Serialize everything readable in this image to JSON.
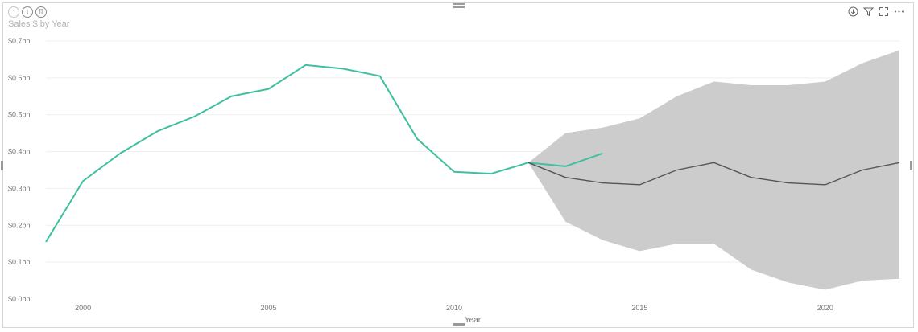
{
  "visual": {
    "title": "Sales $ by Year",
    "header_icons_left": [
      "drill-up-icon",
      "drill-down-icon",
      "expand-all-icon"
    ],
    "header_icons_right": [
      "drill-mode-icon",
      "filter-icon",
      "focus-mode-icon",
      "more-options-icon"
    ]
  },
  "chart_data": {
    "type": "line",
    "title": "Sales $ by Year",
    "xlabel": "Year",
    "ylabel": "",
    "xlim": [
      1999,
      2022
    ],
    "ylim": [
      0,
      0.7
    ],
    "x_ticks": [
      2000,
      2005,
      2010,
      2015,
      2020
    ],
    "y_ticks": [
      {
        "value": 0,
        "label": "$0.0bn"
      },
      {
        "value": 0.1,
        "label": "$0.1bn"
      },
      {
        "value": 0.2,
        "label": "$0.2bn"
      },
      {
        "value": 0.3,
        "label": "$0.3bn"
      },
      {
        "value": 0.4,
        "label": "$0.4bn"
      },
      {
        "value": 0.5,
        "label": "$0.5bn"
      },
      {
        "value": 0.6,
        "label": "$0.6bn"
      },
      {
        "value": 0.7,
        "label": "$0.7bn"
      }
    ],
    "grid": true,
    "series": [
      {
        "color": "#3fbfa0",
        "x": [
          1999,
          2000,
          2001,
          2002,
          2003,
          2004,
          2005,
          2006,
          2007,
          2008,
          2009,
          2010,
          2011,
          2012,
          2013,
          2014
        ],
        "values": [
          0.155,
          0.32,
          0.395,
          0.455,
          0.495,
          0.55,
          0.57,
          0.635,
          0.625,
          0.605,
          0.435,
          0.345,
          0.34,
          0.37,
          0.36,
          0.395
        ]
      },
      {
        "color": "#555555",
        "x": [
          2012,
          2013,
          2014,
          2015,
          2016,
          2017,
          2018,
          2019,
          2020,
          2021,
          2022
        ],
        "values": [
          0.37,
          0.33,
          0.315,
          0.31,
          0.35,
          0.37,
          0.33,
          0.315,
          0.31,
          0.35,
          0.37
        ]
      }
    ],
    "band": {
      "color": "#cccccc",
      "x": [
        2012,
        2013,
        2014,
        2015,
        2016,
        2017,
        2018,
        2019,
        2020,
        2021,
        2022
      ],
      "upper": [
        0.37,
        0.45,
        0.465,
        0.49,
        0.55,
        0.59,
        0.58,
        0.58,
        0.59,
        0.64,
        0.675
      ],
      "lower": [
        0.37,
        0.21,
        0.16,
        0.13,
        0.15,
        0.15,
        0.08,
        0.045,
        0.025,
        0.05,
        0.055
      ]
    }
  }
}
